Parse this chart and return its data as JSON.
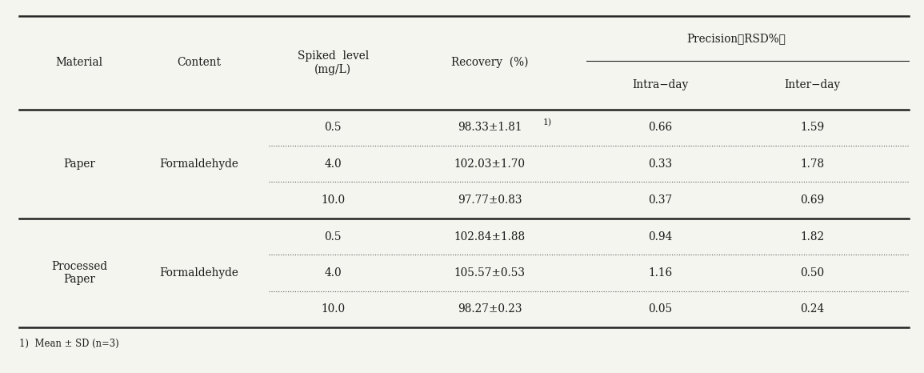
{
  "footnote": "1)  Mean ± SD (n=3)",
  "rows_clean": [
    [
      "Paper",
      "Formaldehyde",
      "0.5",
      "98.33±1.81",
      "0.66",
      "1.59",
      true
    ],
    [
      "",
      "",
      "4.0",
      "102.03±1.70",
      "0.33",
      "1.78",
      false
    ],
    [
      "",
      "",
      "10.0",
      "97.77±0.83",
      "0.37",
      "0.69",
      false
    ],
    [
      "Processed\nPaper",
      "Formaldehyde",
      "0.5",
      "102.84±1.88",
      "0.94",
      "1.82",
      false
    ],
    [
      "",
      "",
      "4.0",
      "105.57±0.53",
      "1.16",
      "0.50",
      false
    ],
    [
      "",
      "",
      "10.0",
      "98.27±0.23",
      "0.05",
      "0.24",
      false
    ]
  ],
  "bg_color": "#f5f5f0",
  "text_color": "#1a1a1a"
}
